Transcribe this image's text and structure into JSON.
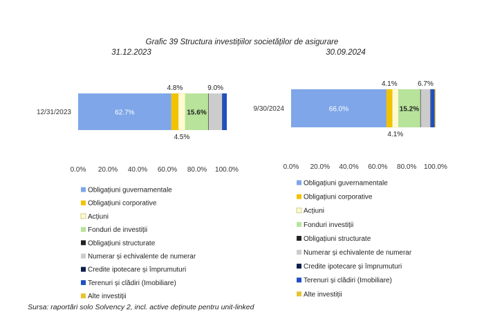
{
  "figure_title": "Grafic 39 Structura investițiilor societăților de asigurare",
  "source": "Sursa: raportări solo Solvency 2, incl. active deținute pentru unit-linked",
  "chart_data": [
    {
      "type": "bar",
      "orientation": "horizontal",
      "stacked": "100%",
      "title": "31.12.2023",
      "categories": [
        "12/31/2023"
      ],
      "xlim": [
        0,
        100
      ],
      "xticks": [
        "0.0%",
        "20.0%",
        "40.0%",
        "60.0%",
        "80.0%",
        "100.0%"
      ],
      "series": [
        {
          "name": "Obligațiuni guvernamentale",
          "color": "#7fa6e8",
          "values": [
            62.7
          ],
          "label": "62.7%"
        },
        {
          "name": "Obligațiuni corporative",
          "color": "#f2c200",
          "values": [
            4.8
          ],
          "label": "4.8%"
        },
        {
          "name": "Acțiuni",
          "color": "#fffbd0",
          "values": [
            4.5
          ],
          "label": "4.5%"
        },
        {
          "name": "Fonduri de investiții",
          "color": "#b7e39a",
          "values": [
            15.6
          ],
          "label": "15.6%"
        },
        {
          "name": "Obligațiuni structurate",
          "color": "#222222",
          "values": [
            0.3
          ],
          "label": ""
        },
        {
          "name": "Numerar și echivalente de numerar",
          "color": "#cccccc",
          "values": [
            9.0
          ],
          "label": "9.0%"
        },
        {
          "name": "Credite ipotecare și împrumuturi",
          "color": "#0e1f4d",
          "values": [
            0.3
          ],
          "label": ""
        },
        {
          "name": "Terenuri și clădiri (Imobiliare)",
          "color": "#1f4fc4",
          "values": [
            2.8
          ],
          "label": ""
        },
        {
          "name": "Alte investiții",
          "color": "#e8c330",
          "values": [
            0.0
          ],
          "label": ""
        }
      ]
    },
    {
      "type": "bar",
      "orientation": "horizontal",
      "stacked": "100%",
      "title": "30.09.2024",
      "categories": [
        "9/30/2024"
      ],
      "xlim": [
        0,
        100
      ],
      "xticks": [
        "0.0%",
        "20.0%",
        "40.0%",
        "60.0%",
        "80.0%",
        "100.0%"
      ],
      "series": [
        {
          "name": "Obligațiuni guvernamentale",
          "color": "#7fa6e8",
          "values": [
            66.0
          ],
          "label": "66.0%"
        },
        {
          "name": "Obligațiuni corporative",
          "color": "#f2c200",
          "values": [
            4.1
          ],
          "label": "4.1%"
        },
        {
          "name": "Acțiuni",
          "color": "#fffbd0",
          "values": [
            4.1
          ],
          "label": "4.1%"
        },
        {
          "name": "Fonduri investiții",
          "color": "#b7e39a",
          "values": [
            15.2
          ],
          "label": "15.2%"
        },
        {
          "name": "Obligațiuni structurate",
          "color": "#222222",
          "values": [
            0.3
          ],
          "label": ""
        },
        {
          "name": "Numerar și echivalente de numerar",
          "color": "#cccccc",
          "values": [
            6.7
          ],
          "label": "6.7%"
        },
        {
          "name": "Credite ipotecare și împrumuturi",
          "color": "#0e1f4d",
          "values": [
            0.4
          ],
          "label": ""
        },
        {
          "name": "Terenuri și clădiri (Imobiliare)",
          "color": "#1f4fc4",
          "values": [
            2.6
          ],
          "label": ""
        },
        {
          "name": "Alte investiții",
          "color": "#e8c330",
          "values": [
            0.6
          ],
          "label": ""
        }
      ]
    }
  ]
}
